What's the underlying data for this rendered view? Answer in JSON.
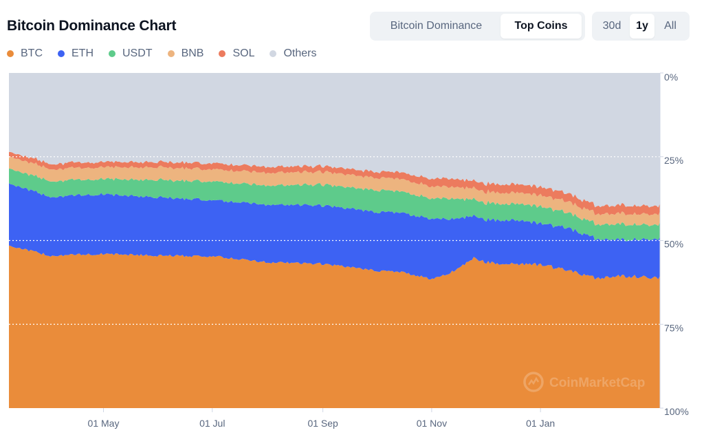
{
  "header": {
    "title": "Bitcoin Dominance Chart",
    "view_tabs": [
      {
        "label": "Bitcoin Dominance",
        "active": false
      },
      {
        "label": "Top Coins",
        "active": true
      }
    ],
    "range_tabs": [
      {
        "label": "30d",
        "active": false
      },
      {
        "label": "1y",
        "active": true
      },
      {
        "label": "All",
        "active": false
      }
    ]
  },
  "chart_data": {
    "type": "area",
    "stacked": true,
    "y_axis_position": "right",
    "y_ticks": [
      "0%",
      "25%",
      "50%",
      "75%",
      "100%"
    ],
    "ylim": [
      0,
      100
    ],
    "x_tick_labels": [
      "01 May",
      "01 Jul",
      "01 Sep",
      "01 Nov",
      "01 Jan"
    ],
    "x_tick_dates": [
      "2023-05-01",
      "2023-07-01",
      "2023-09-01",
      "2023-11-01",
      "2024-01-01"
    ],
    "xlim": [
      "2023-03-09",
      "2024-03-08"
    ],
    "grid": "dotted horizontal",
    "legend_position": "top-left",
    "watermark": "CoinMarketCap",
    "x": [
      "2023-03-09",
      "2023-04-01",
      "2023-05-01",
      "2023-06-01",
      "2023-07-01",
      "2023-08-01",
      "2023-09-01",
      "2023-10-01",
      "2023-10-15",
      "2023-11-01",
      "2023-11-10",
      "2023-11-25",
      "2023-12-01",
      "2023-12-15",
      "2024-01-01",
      "2024-01-15",
      "2024-02-01",
      "2024-02-15",
      "2024-03-08"
    ],
    "series": [
      {
        "name": "BTC",
        "color": "#ea8c3a",
        "values": [
          48.5,
          45.5,
          46.0,
          45.5,
          45.3,
          43.5,
          43.0,
          41.0,
          40.6,
          38.5,
          40.0,
          44.8,
          43.5,
          43.1,
          42.8,
          41.2,
          38.8,
          39.5,
          38.9
        ]
      },
      {
        "name": "ETH",
        "color": "#3d62f3",
        "values": [
          18.6,
          17.6,
          17.8,
          17.4,
          16.8,
          17.2,
          17.5,
          17.5,
          17.7,
          18.0,
          16.5,
          12.5,
          12.7,
          13.2,
          12.3,
          12.6,
          11.8,
          10.8,
          11.6
        ]
      },
      {
        "name": "USDT",
        "color": "#5ecb8b",
        "values": [
          4.5,
          4.7,
          4.6,
          5.2,
          5.6,
          5.7,
          6.2,
          6.5,
          6.4,
          6.0,
          6.3,
          5.0,
          5.0,
          4.9,
          5.0,
          4.6,
          4.4,
          4.6,
          4.3
        ]
      },
      {
        "name": "BNB",
        "color": "#edb47f",
        "values": [
          3.6,
          3.6,
          3.5,
          3.8,
          3.6,
          3.8,
          3.8,
          3.7,
          3.7,
          3.6,
          3.5,
          3.3,
          3.3,
          3.3,
          3.4,
          3.3,
          3.1,
          3.2,
          3.2
        ]
      },
      {
        "name": "SOL",
        "color": "#ec7b5e",
        "values": [
          1.4,
          1.6,
          1.6,
          1.6,
          1.8,
          1.8,
          1.7,
          1.8,
          2.0,
          2.3,
          2.5,
          2.2,
          2.5,
          2.5,
          2.5,
          2.5,
          2.4,
          2.5,
          2.4
        ]
      },
      {
        "name": "Others",
        "color": "#d1d7e2",
        "values": [
          23.4,
          27.0,
          26.5,
          26.5,
          26.9,
          28.0,
          27.8,
          29.5,
          29.6,
          31.6,
          31.2,
          32.2,
          33.0,
          33.0,
          34.0,
          35.8,
          39.5,
          39.4,
          39.6
        ]
      }
    ]
  }
}
